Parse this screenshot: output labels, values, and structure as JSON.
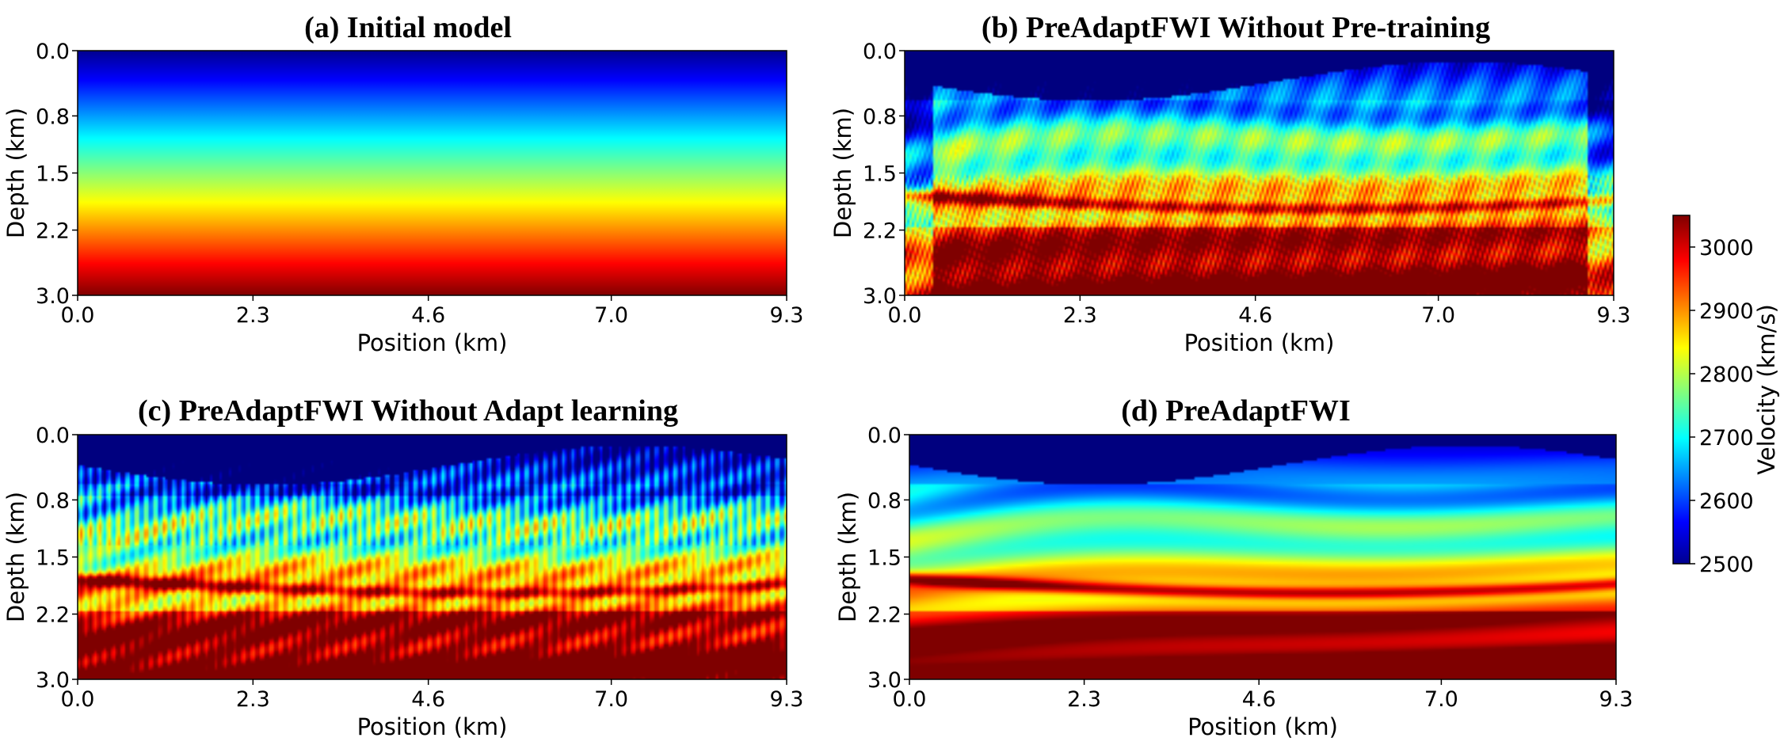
{
  "chart_data": {
    "type": "heatmap",
    "colormap": "jet",
    "colorbar": {
      "label": "Velocity (km/s)",
      "range": [
        2500,
        3050
      ],
      "ticks": [
        "2500",
        "2600",
        "2700",
        "2800",
        "2900",
        "3000"
      ]
    },
    "x_ticks": [
      "0.0",
      "2.3",
      "4.6",
      "7.0",
      "9.3"
    ],
    "y_ticks": [
      "0.0",
      "0.8",
      "1.5",
      "2.2",
      "3.0"
    ],
    "x_range": [
      0.0,
      9.3
    ],
    "y_range": [
      0.0,
      3.0
    ],
    "panels": [
      {
        "id": "a",
        "title": "(a) Initial model",
        "xlabel": "Position (km)",
        "ylabel": "Depth (km)",
        "style": "gradient"
      },
      {
        "id": "b",
        "title": "(b) PreAdaptFWI Without Pre-training",
        "xlabel": "Position (km)",
        "ylabel": "Depth (km)",
        "style": "noisy"
      },
      {
        "id": "c",
        "title": "(c) PreAdaptFWI Without Adapt learning",
        "xlabel": "Position (km)",
        "ylabel": "Depth (km)",
        "style": "artifact"
      },
      {
        "id": "d",
        "title": "(d) PreAdaptFWI",
        "xlabel": "Position (km)",
        "ylabel": "Depth (km)",
        "style": "clean"
      }
    ]
  }
}
